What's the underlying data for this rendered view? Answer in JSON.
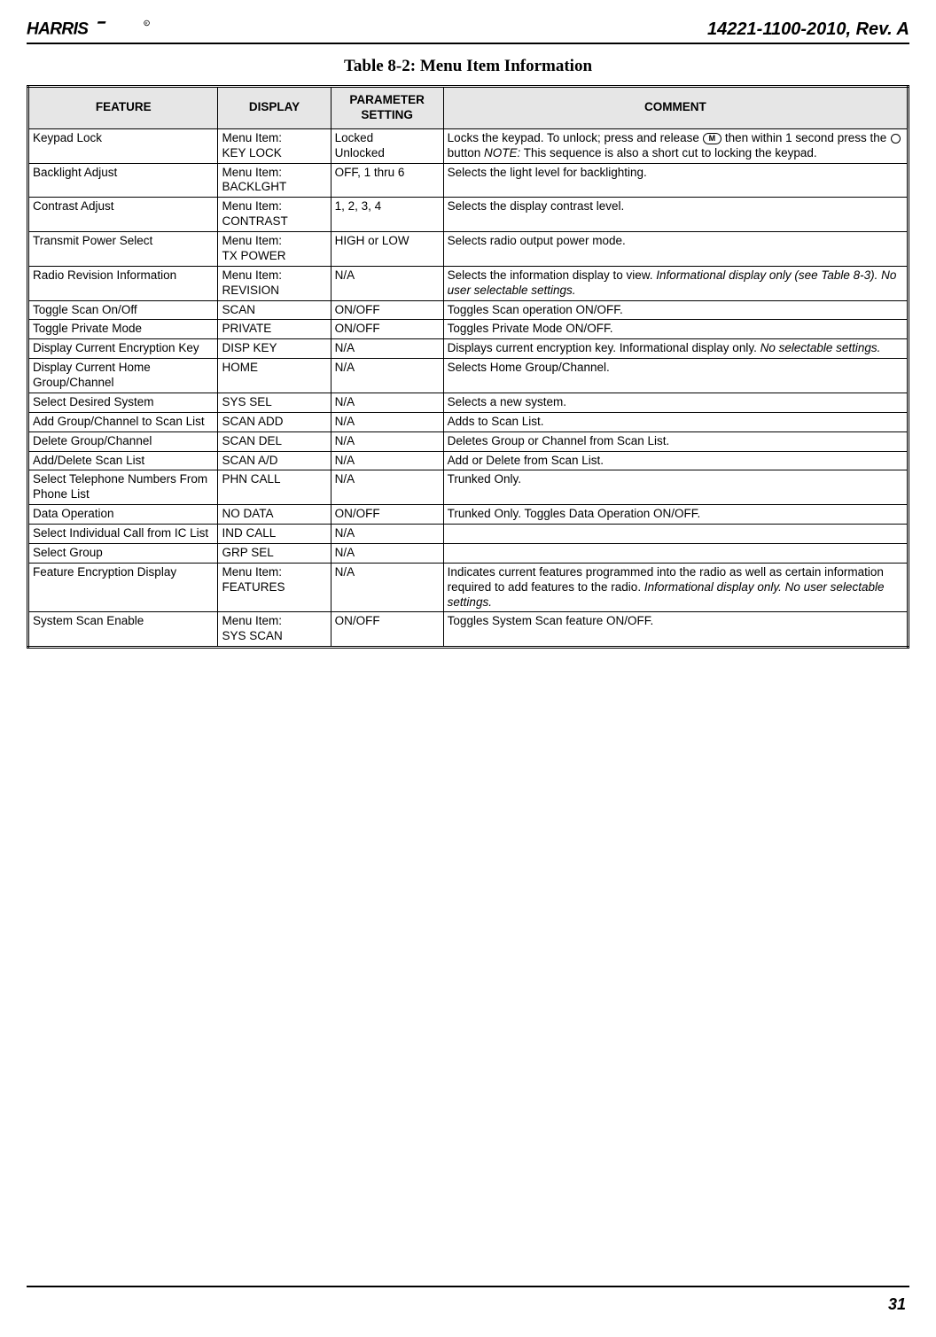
{
  "header": {
    "logo_text": "HARRIS",
    "doc_id": "14221-1100-2010, Rev. A"
  },
  "caption": "Table 8-2: Menu Item Information",
  "table": {
    "headers": [
      "FEATURE",
      "DISPLAY",
      "PARAMETER SETTING",
      "COMMENT"
    ],
    "col_widths_pct": [
      21.6,
      12.8,
      12.8,
      52.8
    ],
    "header_bg": "#e6e6e6",
    "border_color": "#000000",
    "rows": [
      {
        "feature": "Keypad Lock",
        "display": "Menu Item:\nKEY LOCK",
        "setting": "Locked\nUnlocked",
        "comment_pre": "Locks the keypad. To unlock; press and release ",
        "key_label": "M",
        "comment_mid": " then within 1 second press the ",
        "has_circle": true,
        "comment_post": " button ",
        "note_label": "NOTE:",
        "note_rest": " This sequence is also a short cut to locking the keypad."
      },
      {
        "feature": "Backlight Adjust",
        "display": "Menu Item:\nBACKLGHT",
        "setting": "OFF, 1 thru 6",
        "comment": "Selects the light level for backlighting."
      },
      {
        "feature": "Contrast Adjust",
        "display": "Menu Item:\nCONTRAST",
        "setting": "1, 2, 3, 4",
        "comment": "Selects the display contrast level."
      },
      {
        "feature": "Transmit Power Select",
        "display": "Menu Item:\nTX POWER",
        "setting": "HIGH or LOW",
        "comment": "Selects radio output power mode."
      },
      {
        "feature": "Radio Revision Information",
        "display": "Menu Item:\nREVISION",
        "setting": "N/A",
        "comment_plain": "Selects the information display to view. ",
        "comment_italic": "Informational display only (see Table 8-3). No user selectable settings."
      },
      {
        "feature": "Toggle Scan On/Off",
        "display": "SCAN",
        "setting": "ON/OFF",
        "comment": "Toggles Scan operation ON/OFF."
      },
      {
        "feature": "Toggle Private Mode",
        "display": "PRIVATE",
        "setting": "ON/OFF",
        "comment": "Toggles Private Mode ON/OFF."
      },
      {
        "feature": "Display Current Encryption Key",
        "display": "DISP KEY",
        "setting": "N/A",
        "comment_plain": "Displays current encryption key. Informational display only. ",
        "comment_italic": "No selectable settings."
      },
      {
        "feature": "Display Current Home Group/Channel",
        "display": "HOME",
        "setting": "N/A",
        "comment": "Selects Home Group/Channel."
      },
      {
        "feature": "Select Desired System",
        "display": "SYS SEL",
        "setting": "N/A",
        "comment": "Selects a new system."
      },
      {
        "feature": "Add Group/Channel to Scan List",
        "display": "SCAN ADD",
        "setting": "N/A",
        "comment": "Adds to Scan List."
      },
      {
        "feature": "Delete Group/Channel",
        "display": "SCAN DEL",
        "setting": "N/A",
        "comment": "Deletes Group or Channel from Scan List."
      },
      {
        "feature": "Add/Delete Scan List",
        "display": "SCAN A/D",
        "setting": "N/A",
        "comment": "Add or Delete from Scan List."
      },
      {
        "feature": "Select Telephone Numbers From Phone List",
        "display": "PHN CALL",
        "setting": "N/A",
        "comment": "Trunked Only."
      },
      {
        "feature": "Data Operation",
        "display": "NO DATA",
        "setting": "ON/OFF",
        "comment": "Trunked Only. Toggles Data Operation ON/OFF."
      },
      {
        "feature": "Select Individual Call from IC List",
        "display": "IND CALL",
        "setting": "N/A",
        "comment": ""
      },
      {
        "feature": "Select Group",
        "display": "GRP SEL",
        "setting": "N/A",
        "comment": ""
      },
      {
        "feature": "Feature Encryption Display",
        "display": "Menu Item:\nFEATURES",
        "setting": "N/A",
        "comment_plain": "Indicates current features programmed into the radio as well as certain information required to add features to the radio. ",
        "comment_italic": "Informational display only. No user selectable settings."
      },
      {
        "feature": "System Scan Enable",
        "display": "Menu Item:\nSYS SCAN",
        "setting": "ON/OFF",
        "comment": "Toggles System Scan feature ON/OFF."
      }
    ]
  },
  "page_number": "31"
}
